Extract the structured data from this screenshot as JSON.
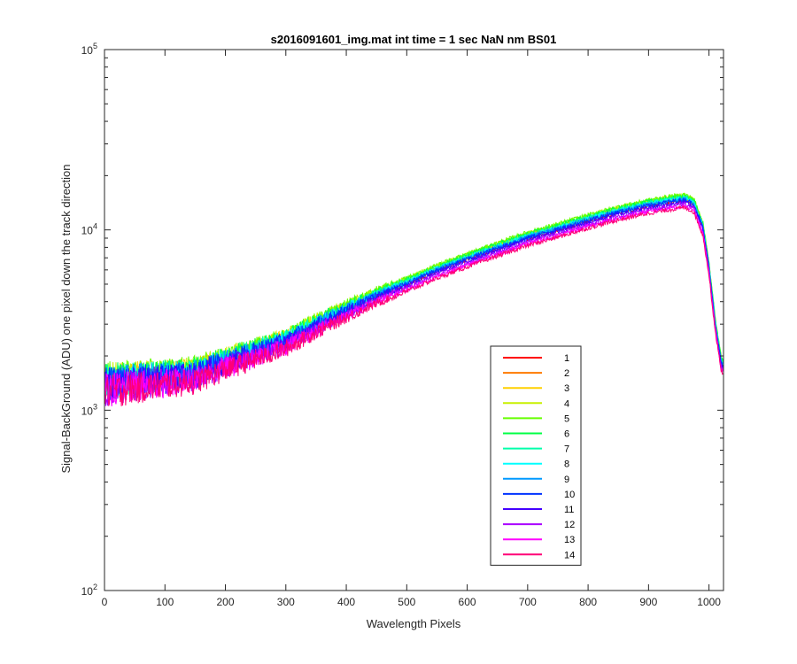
{
  "chart_data": {
    "type": "line",
    "title": "s2016091601_img.mat int time = 1 sec  NaN nm BS01",
    "xlabel": "Wavelength Pixels",
    "ylabel": "Signal-BackGround (ADU) one pixel down the track direction",
    "xlim": [
      0,
      1024
    ],
    "ylim": [
      100,
      100000
    ],
    "yscale": "log",
    "xticks": [
      0,
      100,
      200,
      300,
      400,
      500,
      600,
      700,
      800,
      900,
      1000
    ],
    "yticks": [
      {
        "value": 100,
        "base": "10",
        "exp": "2"
      },
      {
        "value": 1000,
        "base": "10",
        "exp": "3"
      },
      {
        "value": 10000,
        "base": "10",
        "exp": "4"
      },
      {
        "value": 100000,
        "base": "10",
        "exp": "5"
      }
    ],
    "legend_position": "lower-right",
    "profile": {
      "x": [
        0,
        50,
        100,
        150,
        200,
        250,
        300,
        350,
        400,
        450,
        500,
        550,
        600,
        650,
        700,
        750,
        800,
        850,
        900,
        940,
        960,
        975,
        990,
        1000,
        1010,
        1020,
        1024
      ],
      "y": [
        1350,
        1420,
        1480,
        1550,
        1800,
        2050,
        2350,
        2900,
        3500,
        4200,
        4900,
        5800,
        6700,
        7700,
        8800,
        9800,
        11000,
        12200,
        13300,
        14000,
        14300,
        13500,
        10000,
        6000,
        3000,
        1800,
        1700
      ]
    },
    "series": [
      {
        "name": "1",
        "color": "#ff0000",
        "scale": 1.02
      },
      {
        "name": "2",
        "color": "#ff7a00",
        "scale": 1.05
      },
      {
        "name": "3",
        "color": "#ffd000",
        "scale": 1.07
      },
      {
        "name": "4",
        "color": "#c8f000",
        "scale": 1.09
      },
      {
        "name": "5",
        "color": "#66ff00",
        "scale": 1.1
      },
      {
        "name": "6",
        "color": "#00ff44",
        "scale": 1.08
      },
      {
        "name": "7",
        "color": "#00ffaa",
        "scale": 1.06
      },
      {
        "name": "8",
        "color": "#00ffff",
        "scale": 1.05
      },
      {
        "name": "9",
        "color": "#0099ff",
        "scale": 1.04
      },
      {
        "name": "10",
        "color": "#0033ff",
        "scale": 1.03
      },
      {
        "name": "11",
        "color": "#4400ff",
        "scale": 1.0
      },
      {
        "name": "12",
        "color": "#aa00ff",
        "scale": 0.97
      },
      {
        "name": "13",
        "color": "#ff00ff",
        "scale": 0.95
      },
      {
        "name": "14",
        "color": "#ff0077",
        "scale": 0.93
      }
    ]
  }
}
